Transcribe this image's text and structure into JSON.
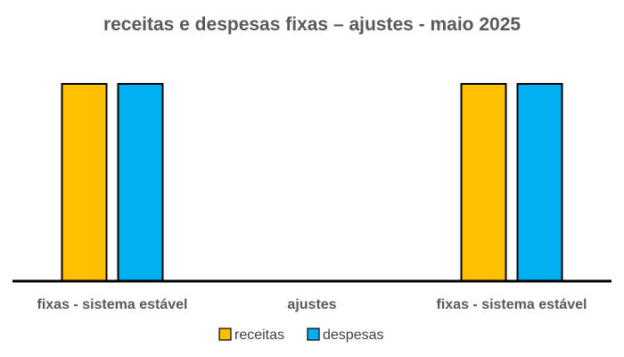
{
  "chart_data": {
    "type": "bar",
    "title": "receitas e despesas fixas – ajustes - maio 2025",
    "categories": [
      "fixas - sistema estável",
      "ajustes",
      "fixas - sistema estável"
    ],
    "series": [
      {
        "name": "receitas",
        "values": [
          1,
          0,
          1
        ],
        "color": "#FFC000"
      },
      {
        "name": "despesas",
        "values": [
          1,
          0,
          1
        ],
        "color": "#00B0F0"
      }
    ],
    "ylim": [
      0,
      1.0
    ],
    "grid": false,
    "legend": "bottom",
    "xlabel": "",
    "ylabel": ""
  }
}
